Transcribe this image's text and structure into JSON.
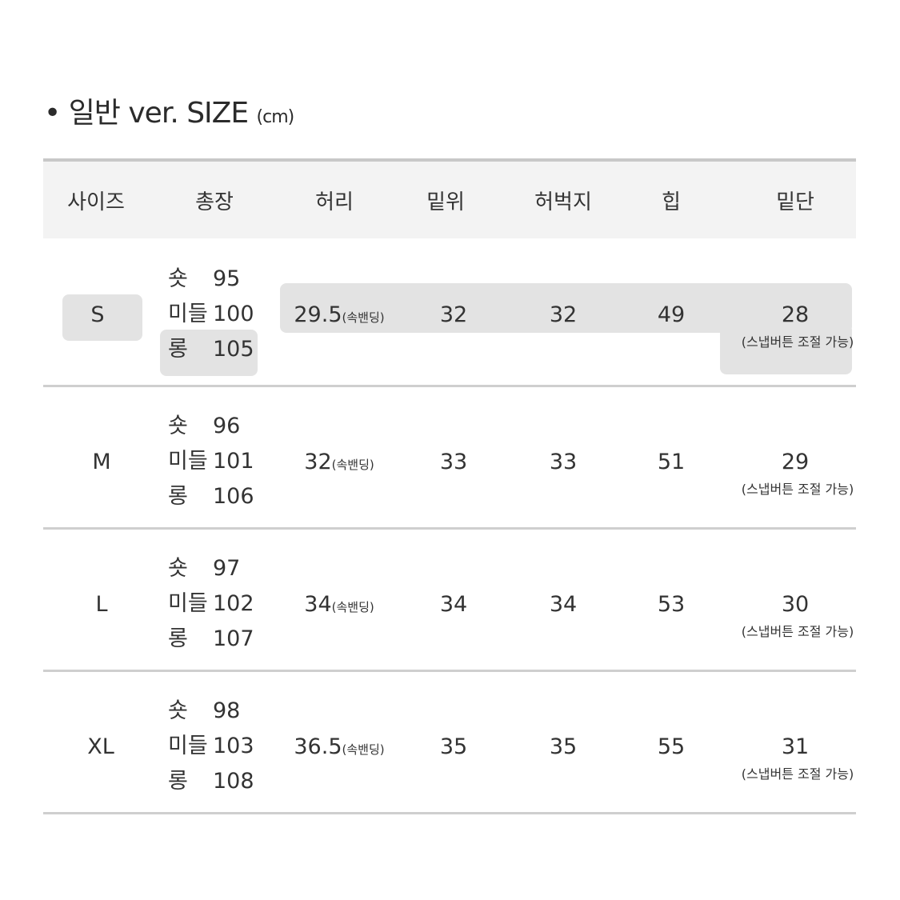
{
  "title": {
    "bullet": "•",
    "text": "일반 ver. SIZE",
    "unit": "(cm)"
  },
  "headers": [
    "사이즈",
    "총장",
    "허리",
    "밑위",
    "허벅지",
    "힙",
    "밑단"
  ],
  "rows": [
    {
      "size": "S",
      "length": [
        {
          "label": "숏",
          "value": "95"
        },
        {
          "label": "미들",
          "value": "100"
        },
        {
          "label": "롱",
          "value": "105"
        }
      ],
      "waist": "29.5",
      "waist_note": "(속밴딩)",
      "rise": "32",
      "thigh": "32",
      "hip": "49",
      "hem": "28",
      "hem_note": "(스냅버튼 조절 가능)"
    },
    {
      "size": "M",
      "length": [
        {
          "label": "숏",
          "value": "96"
        },
        {
          "label": "미들",
          "value": "101"
        },
        {
          "label": "롱",
          "value": "106"
        }
      ],
      "waist": "32",
      "waist_note": "(속밴딩)",
      "rise": "33",
      "thigh": "33",
      "hip": "51",
      "hem": "29",
      "hem_note": "(스냅버튼 조절 가능)"
    },
    {
      "size": "L",
      "length": [
        {
          "label": "숏",
          "value": "97"
        },
        {
          "label": "미들",
          "value": "102"
        },
        {
          "label": "롱",
          "value": "107"
        }
      ],
      "waist": "34",
      "waist_note": "(속밴딩)",
      "rise": "34",
      "thigh": "34",
      "hip": "53",
      "hem": "30",
      "hem_note": "(스냅버튼 조절 가능)"
    },
    {
      "size": "XL",
      "length": [
        {
          "label": "숏",
          "value": "98"
        },
        {
          "label": "미들",
          "value": "103"
        },
        {
          "label": "롱",
          "value": "108"
        }
      ],
      "waist": "36.5",
      "waist_note": "(속밴딩)",
      "rise": "35",
      "thigh": "35",
      "hip": "55",
      "hem": "31",
      "hem_note": "(스냅버튼 조절 가능)"
    }
  ],
  "colors": {
    "header_bg": "#f3f3f3",
    "highlight": "#e3e3e3",
    "lines": "#cfcfcf"
  }
}
